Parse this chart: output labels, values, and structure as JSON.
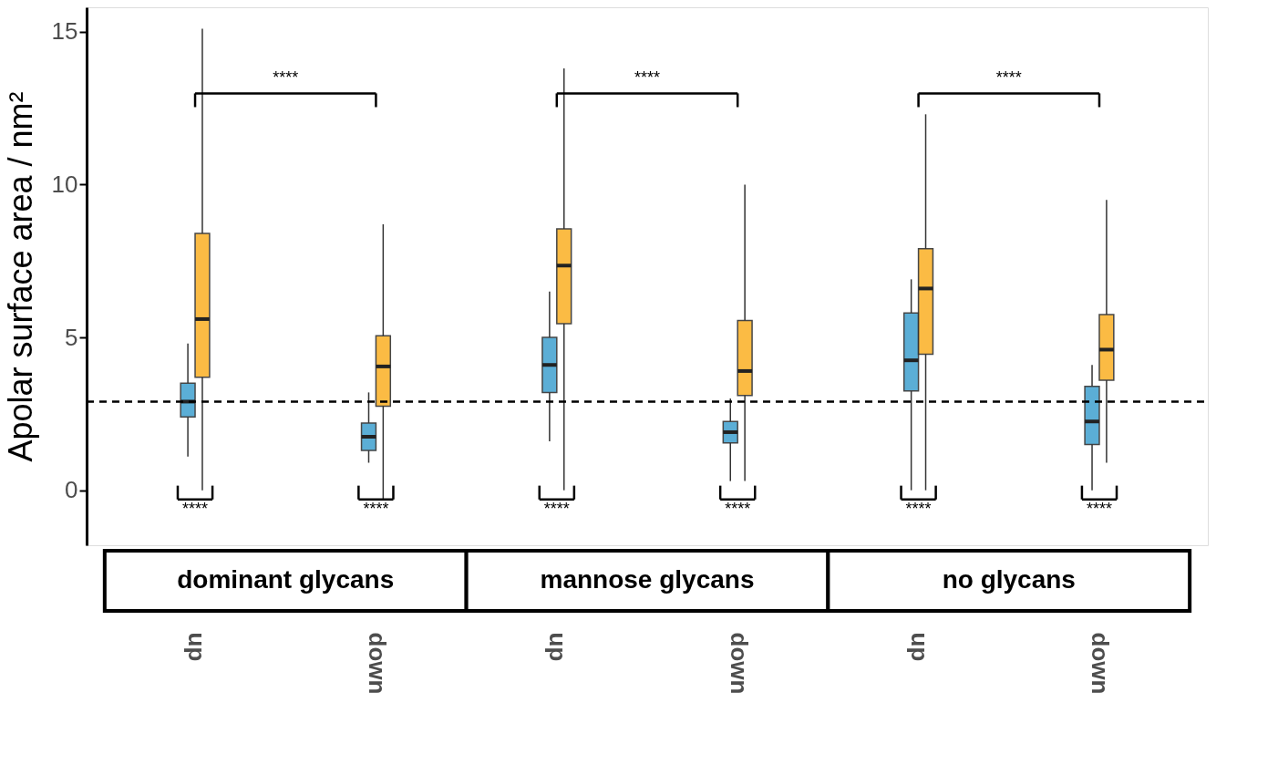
{
  "chart_data": {
    "type": "box",
    "categories": [
      "up",
      "down",
      "up",
      "down",
      "up",
      "down"
    ],
    "ylabel": "Apolar surface area / nm²",
    "ylim": [
      -1.8,
      15.8
    ],
    "yticks": [
      0,
      5,
      10,
      15
    ],
    "series": [
      {
        "color": "#4aa6d2",
        "boxes": [
          {
            "low": 1.1,
            "q1": 2.4,
            "median": 2.9,
            "q3": 3.5,
            "high": 4.8
          },
          {
            "low": 0.9,
            "q1": 1.3,
            "median": 1.75,
            "q3": 2.2,
            "high": 3.2
          },
          {
            "low": 1.6,
            "q1": 3.2,
            "median": 4.1,
            "q3": 5.0,
            "high": 6.5
          },
          {
            "low": 0.3,
            "q1": 1.55,
            "median": 1.9,
            "q3": 2.25,
            "high": 3.0
          },
          {
            "low": 0,
            "q1": 3.25,
            "median": 4.25,
            "q3": 5.8,
            "high": 6.9
          },
          {
            "low": 0,
            "q1": 1.5,
            "median": 2.25,
            "q3": 3.4,
            "high": 4.1
          }
        ]
      },
      {
        "color": "#fbb430",
        "boxes": [
          {
            "low": 0,
            "q1": 3.7,
            "median": 5.6,
            "q3": 8.4,
            "high": 15.1
          },
          {
            "low": -0.3,
            "q1": 2.75,
            "median": 4.05,
            "q3": 5.05,
            "high": 8.7
          },
          {
            "low": 0,
            "q1": 5.45,
            "median": 7.35,
            "q3": 8.55,
            "high": 13.8
          },
          {
            "low": 0.3,
            "q1": 3.1,
            "median": 3.9,
            "q3": 5.55,
            "high": 10.0
          },
          {
            "low": 0,
            "q1": 4.45,
            "median": 6.6,
            "q3": 7.9,
            "high": 12.3
          },
          {
            "low": 0.9,
            "q1": 3.6,
            "median": 4.6,
            "q3": 5.75,
            "high": 9.5
          }
        ]
      }
    ],
    "ref_lines": [
      {
        "axis": "y",
        "value": 2.9,
        "line_style": "dashed"
      }
    ],
    "annotations": [
      "dominant glycans",
      "mannose glycans",
      "no glycans",
      "****",
      "****",
      "****",
      "****",
      "****",
      "****",
      "****",
      "****",
      "****"
    ]
  }
}
